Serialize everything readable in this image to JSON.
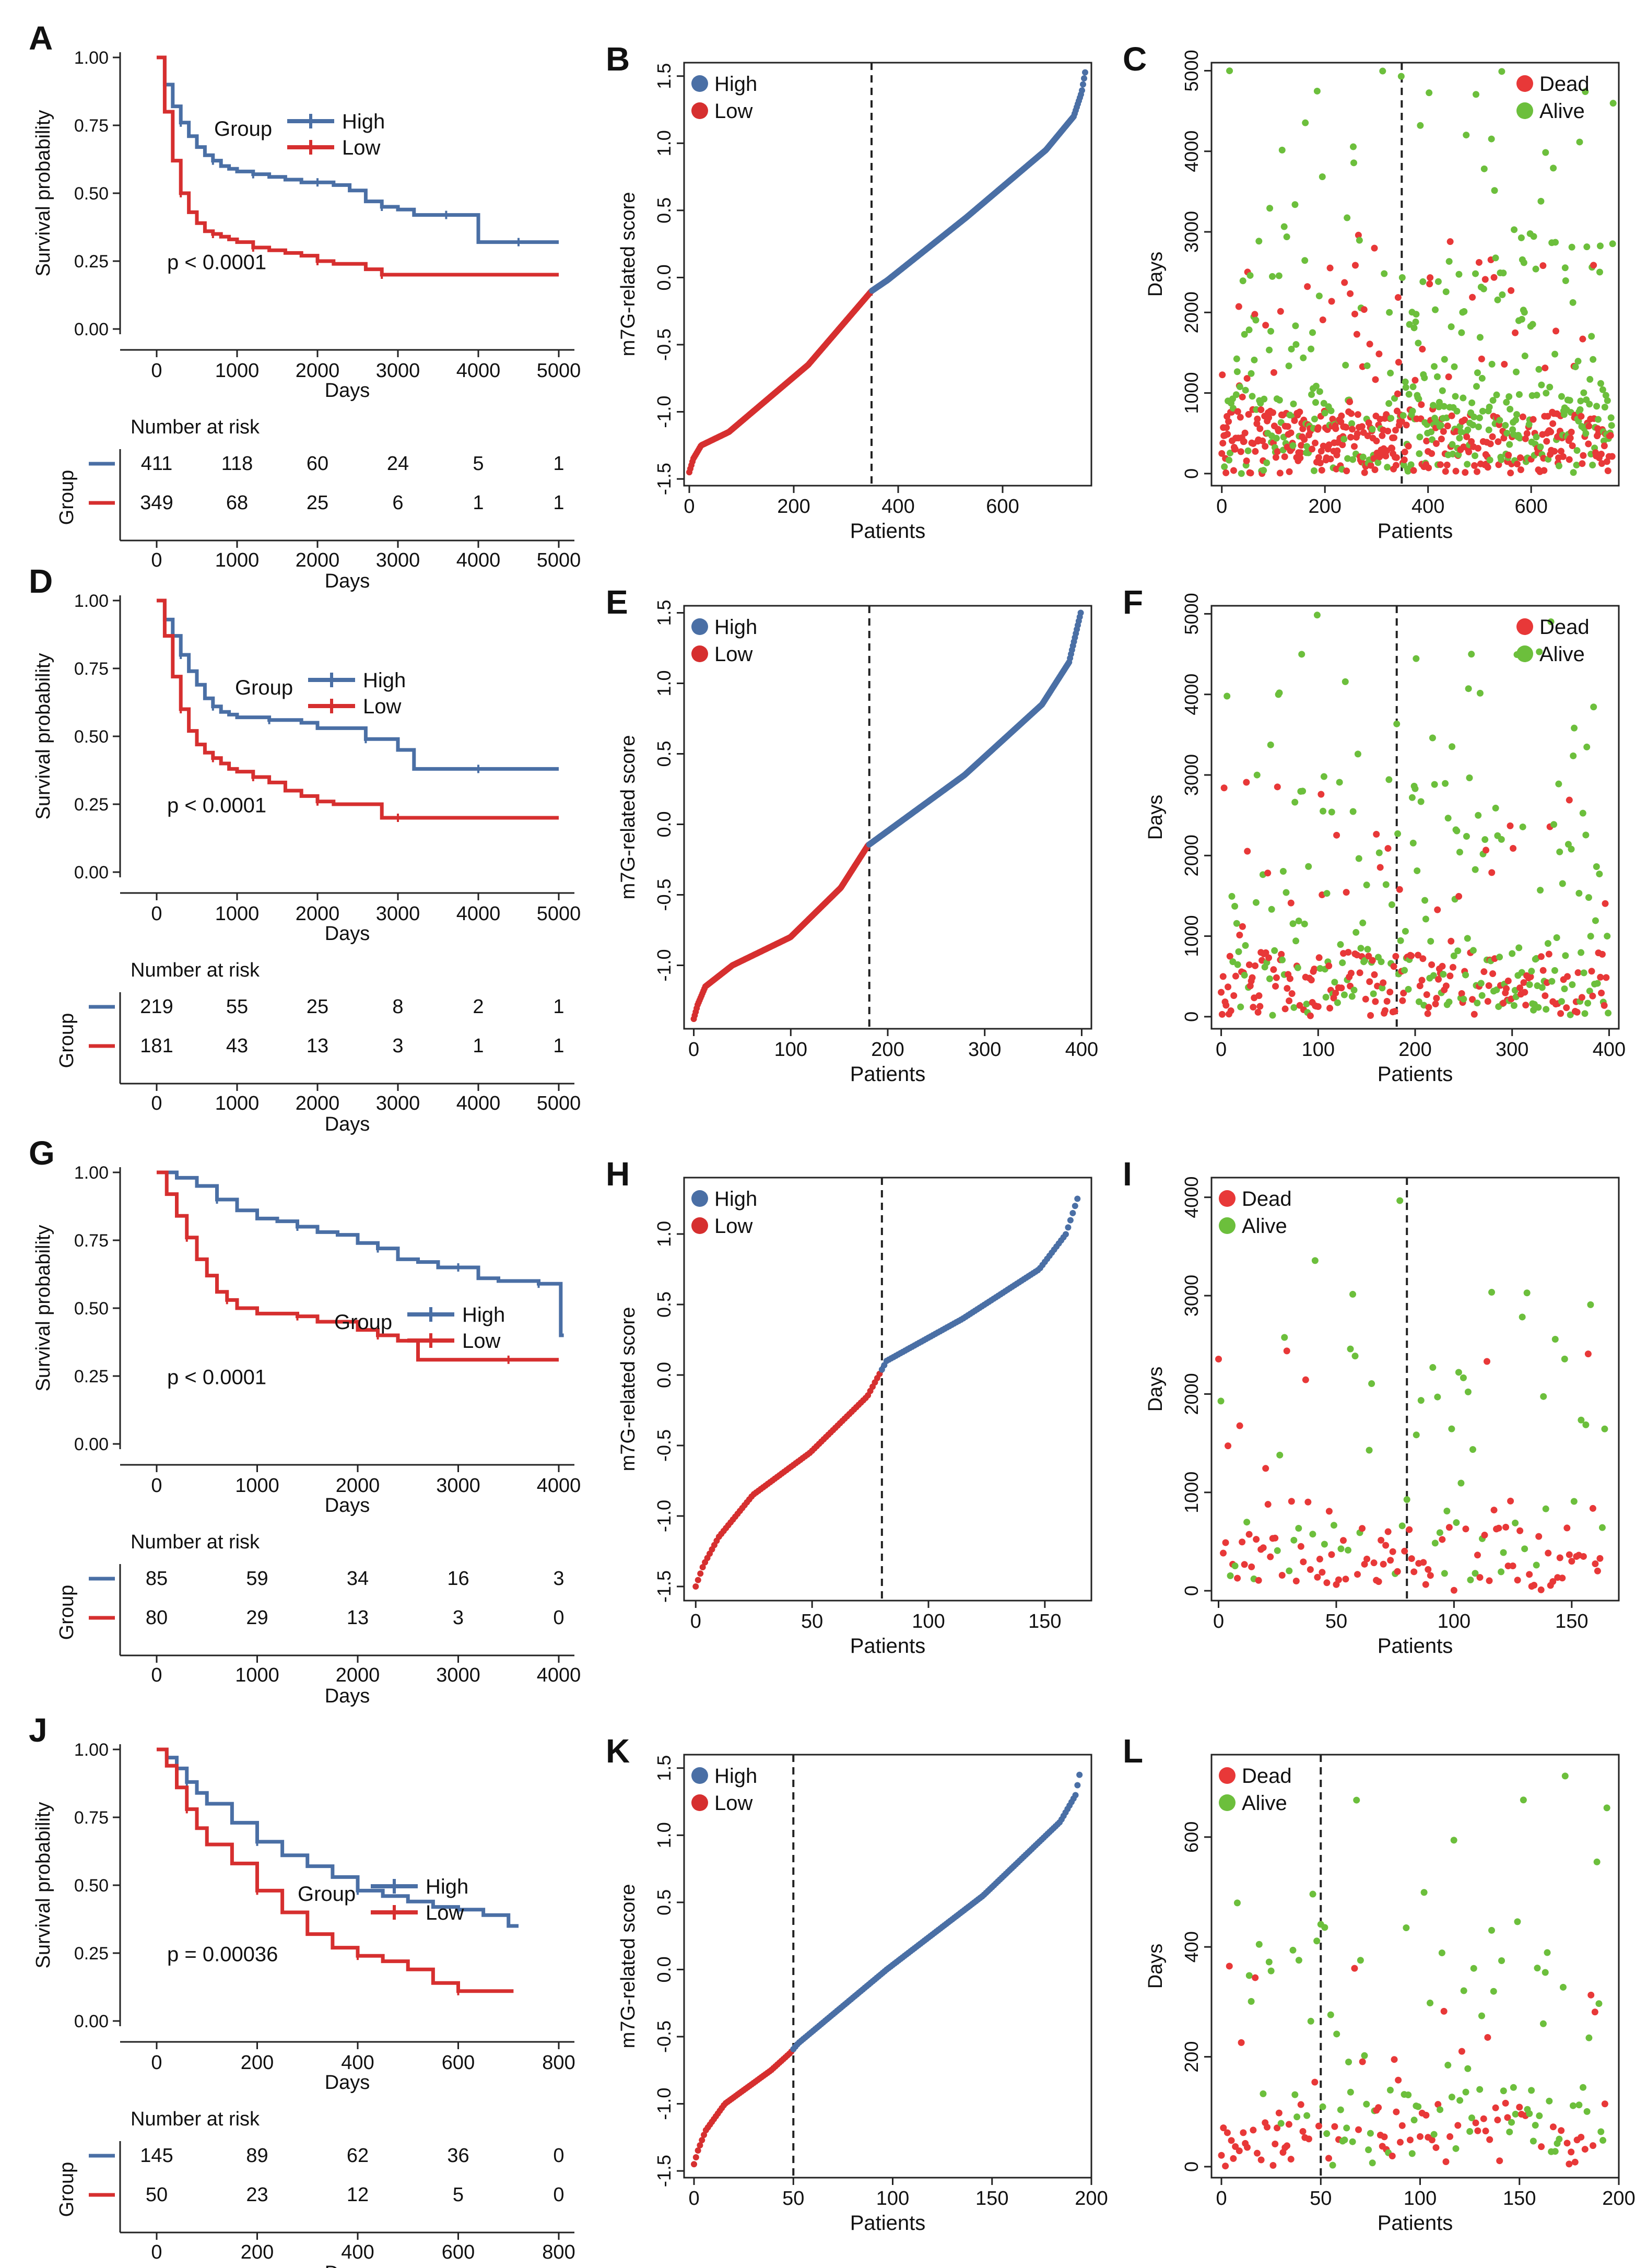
{
  "colors": {
    "high": "#4a6fa5",
    "low": "#d62f2f",
    "dead": "#e83838",
    "alive": "#6cbf3c",
    "axis": "#222222"
  },
  "chart_data": [
    {
      "panel": "A",
      "type": "line",
      "ylabel": "Survival probability",
      "xlabel": "Days",
      "xlim": [
        0,
        5000
      ],
      "ylim": [
        0,
        1
      ],
      "xticks": [
        "0",
        "1000",
        "2000",
        "3000",
        "4000",
        "5000"
      ],
      "yticks": [
        "0.00",
        "0.25",
        "0.50",
        "0.75",
        "1.00"
      ],
      "legend_title": "Group",
      "legend": [
        "High",
        "Low"
      ],
      "pvalue": "p < 0.0001",
      "series": [
        {
          "name": "High",
          "x": [
            0,
            100,
            200,
            300,
            400,
            500,
            600,
            700,
            800,
            900,
            1000,
            1200,
            1400,
            1600,
            1800,
            2000,
            2200,
            2400,
            2600,
            2800,
            3000,
            3200,
            3400,
            3600,
            3800,
            4000,
            4100,
            4500,
            5000
          ],
          "y": [
            1,
            0.9,
            0.82,
            0.76,
            0.71,
            0.67,
            0.64,
            0.62,
            0.6,
            0.59,
            0.58,
            0.57,
            0.56,
            0.55,
            0.54,
            0.54,
            0.53,
            0.51,
            0.47,
            0.45,
            0.44,
            0.42,
            0.42,
            0.42,
            0.42,
            0.32,
            0.32,
            0.32,
            0.32
          ]
        },
        {
          "name": "Low",
          "x": [
            0,
            100,
            200,
            300,
            400,
            500,
            600,
            700,
            800,
            900,
            1000,
            1200,
            1400,
            1600,
            1800,
            2000,
            2200,
            2400,
            2600,
            2800,
            3000,
            4000,
            5000
          ],
          "y": [
            1,
            0.8,
            0.62,
            0.5,
            0.43,
            0.39,
            0.36,
            0.35,
            0.34,
            0.33,
            0.32,
            0.3,
            0.29,
            0.28,
            0.27,
            0.25,
            0.24,
            0.24,
            0.22,
            0.2,
            0.2,
            0.2,
            0.2
          ]
        }
      ],
      "risk_table": {
        "title": "Number at risk",
        "ylabel": "Group",
        "times": [
          "0",
          "1000",
          "2000",
          "3000",
          "4000",
          "5000"
        ],
        "rows": [
          [
            "411",
            "118",
            "60",
            "24",
            "5",
            "1"
          ],
          [
            "349",
            "68",
            "25",
            "6",
            "1",
            "1"
          ]
        ]
      }
    },
    {
      "panel": "B",
      "type": "scatter",
      "ylabel": "m7G-related score",
      "xlabel": "Patients",
      "n": 760,
      "cutoff": 349,
      "xlim": [
        -10,
        770
      ],
      "ylim": [
        -1.55,
        1.6
      ],
      "xticks": [
        "0",
        "200",
        "400",
        "600"
      ],
      "yticks": [
        "-1.5",
        "-1.0",
        "-0.5",
        "0.0",
        "0.5",
        "1.0",
        "1.5"
      ],
      "legend": [
        "High",
        "Low"
      ],
      "curve": {
        "x": [
          0,
          0.01,
          0.03,
          0.1,
          0.3,
          0.46,
          0.5,
          0.7,
          0.9,
          0.97,
          0.99,
          1
        ],
        "y": [
          -1.45,
          -1.35,
          -1.25,
          -1.15,
          -0.65,
          -0.1,
          -0.02,
          0.45,
          0.95,
          1.2,
          1.38,
          1.55
        ]
      }
    },
    {
      "panel": "C",
      "type": "scatter",
      "ylabel": "Days",
      "xlabel": "Patients",
      "n": 760,
      "cutoff": 349,
      "xlim": [
        -20,
        770
      ],
      "ylim": [
        -150,
        5100
      ],
      "xticks": [
        "0",
        "200",
        "400",
        "600"
      ],
      "yticks": [
        "0",
        "1000",
        "2000",
        "3000",
        "4000",
        "5000"
      ],
      "legend": [
        "Dead",
        "Alive"
      ],
      "ymax": 5000,
      "seed": 11
    },
    {
      "panel": "D",
      "type": "line",
      "ylabel": "Survival probability",
      "xlabel": "Days",
      "xlim": [
        0,
        5000
      ],
      "ylim": [
        0,
        1
      ],
      "xticks": [
        "0",
        "1000",
        "2000",
        "3000",
        "4000",
        "5000"
      ],
      "yticks": [
        "0.00",
        "0.25",
        "0.50",
        "0.75",
        "1.00"
      ],
      "legend_title": "Group",
      "legend": [
        "High",
        "Low"
      ],
      "pvalue": "p < 0.0001",
      "series": [
        {
          "name": "High",
          "x": [
            0,
            100,
            200,
            300,
            400,
            500,
            600,
            700,
            800,
            900,
            1000,
            1400,
            1800,
            2000,
            2400,
            2600,
            3000,
            3200,
            3400,
            4000,
            5000
          ],
          "y": [
            1,
            0.93,
            0.87,
            0.8,
            0.74,
            0.69,
            0.64,
            0.61,
            0.59,
            0.58,
            0.57,
            0.56,
            0.55,
            0.53,
            0.53,
            0.49,
            0.45,
            0.38,
            0.38,
            0.38,
            0.38
          ]
        },
        {
          "name": "Low",
          "x": [
            0,
            100,
            200,
            300,
            400,
            500,
            600,
            700,
            800,
            900,
            1000,
            1200,
            1400,
            1600,
            1800,
            2000,
            2200,
            2600,
            2800,
            3000,
            4000,
            5000
          ],
          "y": [
            1,
            0.87,
            0.72,
            0.6,
            0.52,
            0.47,
            0.44,
            0.42,
            0.4,
            0.38,
            0.37,
            0.35,
            0.33,
            0.3,
            0.28,
            0.26,
            0.25,
            0.25,
            0.2,
            0.2,
            0.2,
            0.2
          ]
        }
      ],
      "risk_table": {
        "title": "Number at risk",
        "ylabel": "Group",
        "times": [
          "0",
          "1000",
          "2000",
          "3000",
          "4000",
          "5000"
        ],
        "rows": [
          [
            "219",
            "55",
            "25",
            "8",
            "2",
            "1"
          ],
          [
            "181",
            "43",
            "13",
            "3",
            "1",
            "1"
          ]
        ]
      }
    },
    {
      "panel": "E",
      "type": "scatter",
      "ylabel": "m7G-related score",
      "xlabel": "Patients",
      "n": 400,
      "cutoff": 181,
      "xlim": [
        -10,
        410
      ],
      "ylim": [
        -1.45,
        1.55
      ],
      "xticks": [
        "0",
        "100",
        "200",
        "300",
        "400"
      ],
      "yticks": [
        "-1.0",
        "-0.5",
        "0.0",
        "0.5",
        "1.0",
        "1.5"
      ],
      "legend": [
        "High",
        "Low"
      ],
      "curve": {
        "x": [
          0,
          0.01,
          0.03,
          0.1,
          0.25,
          0.38,
          0.45,
          0.5,
          0.7,
          0.9,
          0.97,
          1
        ],
        "y": [
          -1.38,
          -1.28,
          -1.15,
          -1.0,
          -0.8,
          -0.45,
          -0.15,
          -0.05,
          0.35,
          0.85,
          1.15,
          1.5
        ]
      }
    },
    {
      "panel": "F",
      "type": "scatter",
      "ylabel": "Days",
      "xlabel": "Patients",
      "n": 400,
      "cutoff": 181,
      "xlim": [
        -10,
        410
      ],
      "ylim": [
        -150,
        5100
      ],
      "xticks": [
        "0",
        "100",
        "200",
        "300",
        "400"
      ],
      "yticks": [
        "0",
        "1000",
        "2000",
        "3000",
        "4000",
        "5000"
      ],
      "legend": [
        "Dead",
        "Alive"
      ],
      "ymax": 5000,
      "seed": 23
    },
    {
      "panel": "G",
      "type": "line",
      "ylabel": "Survival probability",
      "xlabel": "Days",
      "xlim": [
        0,
        4000
      ],
      "ylim": [
        0,
        1
      ],
      "xticks": [
        "0",
        "1000",
        "2000",
        "3000",
        "4000"
      ],
      "yticks": [
        "0.00",
        "0.25",
        "0.50",
        "0.75",
        "1.00"
      ],
      "legend_title": "Group",
      "legend": [
        "High",
        "Low"
      ],
      "pvalue": "p < 0.0001",
      "series": [
        {
          "name": "High",
          "x": [
            0,
            200,
            400,
            600,
            800,
            1000,
            1200,
            1400,
            1600,
            1800,
            2000,
            2200,
            2400,
            2600,
            2800,
            3000,
            3200,
            3400,
            3600,
            3800,
            4000,
            4020,
            4050
          ],
          "y": [
            1,
            0.98,
            0.95,
            0.9,
            0.86,
            0.83,
            0.82,
            0.8,
            0.78,
            0.77,
            0.74,
            0.72,
            0.68,
            0.67,
            0.65,
            0.65,
            0.61,
            0.6,
            0.6,
            0.59,
            0.59,
            0.4,
            0.4
          ]
        },
        {
          "name": "Low",
          "x": [
            0,
            100,
            200,
            300,
            400,
            500,
            600,
            700,
            800,
            1000,
            1200,
            1400,
            1600,
            1800,
            2000,
            2200,
            2400,
            2600,
            3000,
            3500,
            4000
          ],
          "y": [
            1,
            0.92,
            0.84,
            0.76,
            0.68,
            0.62,
            0.56,
            0.53,
            0.5,
            0.48,
            0.48,
            0.47,
            0.45,
            0.45,
            0.42,
            0.4,
            0.38,
            0.31,
            0.31,
            0.31,
            0.31
          ]
        }
      ],
      "risk_table": {
        "title": "Number at risk",
        "ylabel": "Group",
        "times": [
          "0",
          "1000",
          "2000",
          "3000",
          "4000"
        ],
        "rows": [
          [
            "85",
            "59",
            "34",
            "16",
            "3"
          ],
          [
            "80",
            "29",
            "13",
            "3",
            "0"
          ]
        ]
      }
    },
    {
      "panel": "H",
      "type": "scatter",
      "ylabel": "m7G-related score",
      "xlabel": "Patients",
      "n": 165,
      "cutoff": 80,
      "xlim": [
        -5,
        170
      ],
      "ylim": [
        -1.6,
        1.4
      ],
      "xticks": [
        "0",
        "50",
        "100",
        "150"
      ],
      "yticks": [
        "-1.5",
        "-1.0",
        "-0.5",
        "0.0",
        "0.5",
        "1.0"
      ],
      "legend": [
        "High",
        "Low"
      ],
      "curve": {
        "x": [
          0,
          0.02,
          0.06,
          0.15,
          0.3,
          0.45,
          0.48,
          0.5,
          0.7,
          0.9,
          0.97,
          1
        ],
        "y": [
          -1.5,
          -1.35,
          -1.15,
          -0.85,
          -0.55,
          -0.15,
          0.0,
          0.1,
          0.4,
          0.75,
          1.0,
          1.25
        ]
      }
    },
    {
      "panel": "I",
      "type": "scatter",
      "ylabel": "Days",
      "xlabel": "Patients",
      "n": 165,
      "cutoff": 80,
      "xlim": [
        -3,
        170
      ],
      "ylim": [
        -100,
        4200
      ],
      "xticks": [
        "0",
        "50",
        "100",
        "150"
      ],
      "yticks": [
        "0",
        "1000",
        "2000",
        "3000",
        "4000"
      ],
      "legend": [
        "Dead",
        "Alive"
      ],
      "ymax": 4100,
      "seed": 37
    },
    {
      "panel": "J",
      "type": "line",
      "ylabel": "Survival probability",
      "xlabel": "Days",
      "xlim": [
        0,
        800
      ],
      "ylim": [
        0,
        1
      ],
      "xticks": [
        "0",
        "200",
        "400",
        "600",
        "800"
      ],
      "yticks": [
        "0.00",
        "0.25",
        "0.50",
        "0.75",
        "1.00"
      ],
      "legend_title": "Group",
      "legend": [
        "High",
        "Low"
      ],
      "pvalue": "p = 0.00036",
      "series": [
        {
          "name": "High",
          "x": [
            0,
            20,
            40,
            60,
            80,
            100,
            150,
            200,
            250,
            300,
            350,
            400,
            450,
            500,
            550,
            600,
            650,
            700,
            720
          ],
          "y": [
            1,
            0.97,
            0.93,
            0.88,
            0.84,
            0.8,
            0.73,
            0.66,
            0.61,
            0.57,
            0.53,
            0.48,
            0.46,
            0.44,
            0.42,
            0.41,
            0.39,
            0.35,
            0.35
          ]
        },
        {
          "name": "Low",
          "x": [
            0,
            20,
            40,
            60,
            80,
            100,
            150,
            200,
            250,
            300,
            350,
            400,
            450,
            500,
            550,
            600,
            650,
            700,
            710
          ],
          "y": [
            1,
            0.94,
            0.86,
            0.78,
            0.71,
            0.65,
            0.58,
            0.48,
            0.4,
            0.32,
            0.27,
            0.24,
            0.22,
            0.19,
            0.14,
            0.11,
            0.11,
            0.11,
            0.11
          ]
        }
      ],
      "risk_table": {
        "title": "Number at risk",
        "ylabel": "Group",
        "times": [
          "0",
          "200",
          "400",
          "600",
          "800"
        ],
        "rows": [
          [
            "145",
            "89",
            "62",
            "36",
            "0"
          ],
          [
            "50",
            "23",
            "12",
            "5",
            "0"
          ]
        ]
      }
    },
    {
      "panel": "K",
      "type": "scatter",
      "ylabel": "m7G-related score",
      "xlabel": "Patients",
      "n": 195,
      "cutoff": 50,
      "xlim": [
        -5,
        200
      ],
      "ylim": [
        -1.55,
        1.6
      ],
      "xticks": [
        "0",
        "50",
        "100",
        "150",
        "200"
      ],
      "yticks": [
        "-1.5",
        "-1.0",
        "-0.5",
        "0.0",
        "0.5",
        "1.0",
        "1.5"
      ],
      "legend": [
        "High",
        "Low"
      ],
      "curve": {
        "x": [
          0,
          0.01,
          0.03,
          0.08,
          0.2,
          0.25,
          0.27,
          0.5,
          0.75,
          0.95,
          0.99,
          1
        ],
        "y": [
          -1.45,
          -1.35,
          -1.2,
          -1.0,
          -0.75,
          -0.62,
          -0.55,
          0.0,
          0.55,
          1.1,
          1.3,
          1.45
        ]
      }
    },
    {
      "panel": "L",
      "type": "scatter",
      "ylabel": "Days",
      "xlabel": "Patients",
      "n": 195,
      "cutoff": 50,
      "xlim": [
        -5,
        200
      ],
      "ylim": [
        -20,
        750
      ],
      "xticks": [
        "0",
        "50",
        "100",
        "150",
        "200"
      ],
      "yticks": [
        "0",
        "200",
        "400",
        "600"
      ],
      "legend": [
        "Dead",
        "Alive"
      ],
      "ymax": 730,
      "seed": 53
    }
  ]
}
